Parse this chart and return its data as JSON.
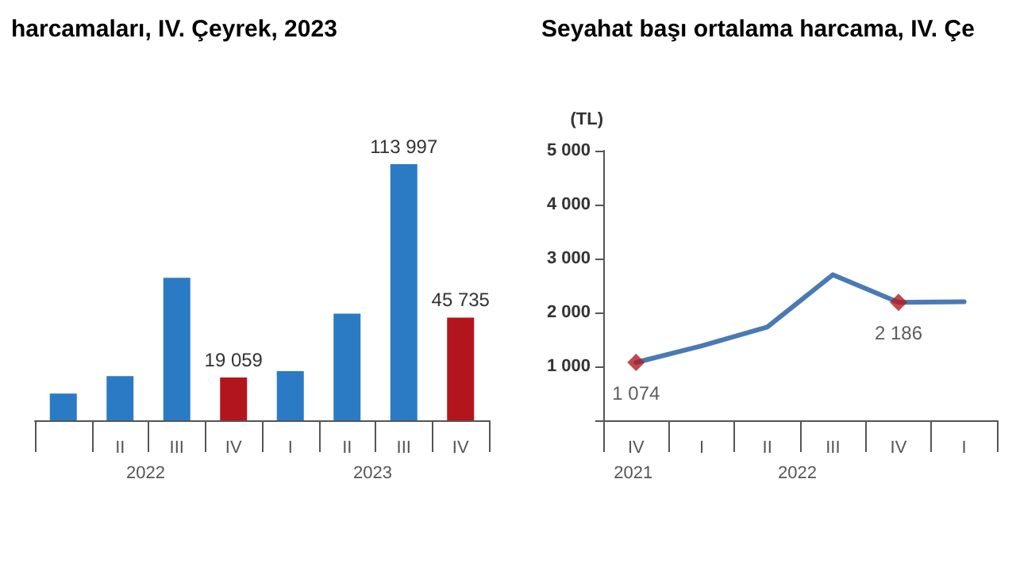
{
  "chart_data": [
    {
      "type": "bar",
      "title": "harcamaları, IV. Çeyrek, 2023",
      "categories": [
        null,
        "II",
        "III",
        "IV",
        "I",
        "II",
        "III",
        "IV"
      ],
      "series": [
        {
          "colors": [
            "#2b7bc4",
            "#2b7bc4",
            "#2b7bc4",
            "#b3151c",
            "#2b7bc4",
            "#2b7bc4",
            "#2b7bc4",
            "#b3151c"
          ],
          "values": [
            11900,
            19700,
            63400,
            19059,
            21900,
            47500,
            113997,
            45735
          ],
          "value_labels": [
            null,
            null,
            null,
            "19 059",
            null,
            null,
            "113 997",
            "45 735"
          ]
        }
      ],
      "annotations": [
        "2022",
        "2023"
      ],
      "grid": false
    },
    {
      "type": "line",
      "title": "Seyahat başı ortalama harcama, IV. Çe",
      "ylabel": "(TL)",
      "categories": [
        "IV",
        "I",
        "II",
        "III",
        "IV",
        "I"
      ],
      "series": [
        {
          "color": "#4a7ab4",
          "values": [
            1074,
            1380,
            1730,
            2700,
            2186,
            2200
          ],
          "marker": "none",
          "line_style": "solid"
        },
        {
          "type": "scatter",
          "color": "#b01c20",
          "values": [
            1074,
            null,
            null,
            null,
            2186,
            null
          ],
          "marker": "diamond",
          "value_labels": [
            "1 074",
            null,
            null,
            null,
            "2 186",
            null
          ]
        }
      ],
      "ylim": [
        0,
        5000
      ],
      "yticks": [
        {
          "value": 0,
          "label": null
        },
        {
          "value": 1000,
          "label": "1 000"
        },
        {
          "value": 2000,
          "label": "2 000"
        },
        {
          "value": 3000,
          "label": "3 000"
        },
        {
          "value": 4000,
          "label": "4 000"
        },
        {
          "value": 5000,
          "label": "5 000"
        }
      ],
      "annotations": [
        "2021",
        "2022"
      ],
      "grid": false
    }
  ]
}
